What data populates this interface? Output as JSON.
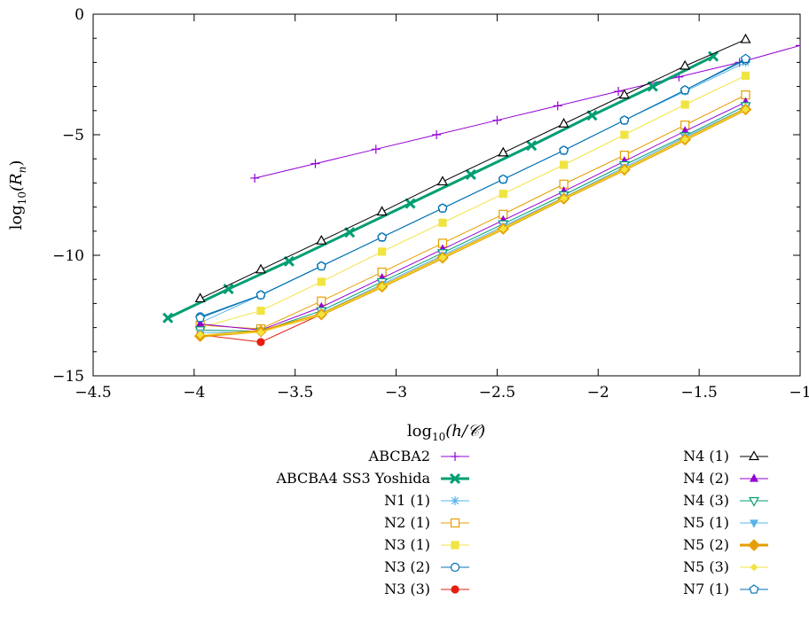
{
  "chart_data": {
    "type": "line",
    "xlabel": {
      "pre": "log",
      "sub": "10",
      "post": "(h/𝒞)"
    },
    "ylabel": {
      "pre": "log",
      "sub": "10",
      "post": "(R",
      "sub2": "n",
      "post2": ")"
    },
    "xlim": [
      -4.5,
      -1
    ],
    "ylim": [
      -15,
      0
    ],
    "x_ticks": [
      -4.5,
      -4,
      -3.5,
      -3,
      -2.5,
      -2,
      -1.5,
      -1
    ],
    "x_tick_labels": [
      "−4.5",
      "−4",
      "−3.5",
      "−3",
      "−2.5",
      "−2",
      "−1.5",
      "−1"
    ],
    "y_ticks": [
      0,
      -5,
      -10,
      -15
    ],
    "y_tick_labels": [
      "0",
      "−5",
      "−10",
      "−15"
    ],
    "grid": false,
    "legend_position": "bottom",
    "series": [
      {
        "name": "ABCBA2",
        "color": "#9400d3",
        "marker": "plus",
        "width": 1,
        "x": [
          -3.7,
          -3.4,
          -3.1,
          -2.8,
          -2.5,
          -2.2,
          -1.9,
          -1.6,
          -1.3,
          -1.0
        ],
        "y": [
          -6.8,
          -6.2,
          -5.6,
          -5.0,
          -4.4,
          -3.8,
          -3.2,
          -2.6,
          -2.0,
          -1.3
        ]
      },
      {
        "name": "ABCBA4 SS3 Yoshida",
        "color": "#009e73",
        "marker": "x",
        "width": 3,
        "x": [
          -4.13,
          -3.83,
          -3.53,
          -3.23,
          -2.93,
          -2.63,
          -2.33,
          -2.03,
          -1.73,
          -1.43
        ],
        "y": [
          -12.6,
          -11.4,
          -10.25,
          -9.05,
          -7.85,
          -6.65,
          -5.45,
          -4.2,
          -3.0,
          -1.75
        ]
      },
      {
        "name": "N1 (1)",
        "color": "#56b4e9",
        "marker": "star",
        "width": 1,
        "x": [
          -3.97,
          -3.67,
          -3.37,
          -3.07,
          -2.77,
          -2.47,
          -2.17,
          -1.87,
          -1.57,
          -1.27
        ],
        "y": [
          -12.8,
          -11.65,
          -10.45,
          -9.25,
          -8.05,
          -6.85,
          -5.65,
          -4.4,
          -3.2,
          -2.0
        ]
      },
      {
        "name": "N2 (1)",
        "color": "#e69f00",
        "marker": "square-open",
        "width": 1,
        "x": [
          -3.97,
          -3.67,
          -3.37,
          -3.07,
          -2.77,
          -2.47,
          -2.17,
          -1.87,
          -1.57,
          -1.27
        ],
        "y": [
          -12.9,
          -13.05,
          -11.9,
          -10.7,
          -9.5,
          -8.3,
          -7.05,
          -5.85,
          -4.6,
          -3.35
        ]
      },
      {
        "name": "N3 (1)",
        "color": "#f0e442",
        "marker": "square-filled",
        "width": 1,
        "x": [
          -3.97,
          -3.67,
          -3.37,
          -3.07,
          -2.77,
          -2.47,
          -2.17,
          -1.87,
          -1.57,
          -1.27
        ],
        "y": [
          -13.0,
          -12.3,
          -11.1,
          -9.85,
          -8.65,
          -7.45,
          -6.25,
          -5.0,
          -3.75,
          -2.55
        ]
      },
      {
        "name": "N3 (2)",
        "color": "#0072b2",
        "marker": "circle-open",
        "width": 1,
        "x": [
          -3.97,
          -3.67,
          -3.37,
          -3.07,
          -2.77,
          -2.47,
          -2.17,
          -1.87,
          -1.57,
          -1.27
        ],
        "y": [
          -12.55,
          -11.65,
          -10.45,
          -9.25,
          -8.05,
          -6.85,
          -5.65,
          -4.4,
          -3.15,
          -1.9
        ]
      },
      {
        "name": "N3 (3)",
        "color": "#e51e10",
        "marker": "circle-filled",
        "width": 1,
        "x": [
          -3.97,
          -3.67,
          -3.37,
          -3.07,
          -2.77,
          -2.47,
          -2.17,
          -1.87,
          -1.57,
          -1.27
        ],
        "y": [
          -13.3,
          -13.6,
          -12.45,
          -11.3,
          -10.1,
          -8.9,
          -7.65,
          -6.45,
          -5.2,
          -3.95
        ]
      },
      {
        "name": "N4 (1)",
        "color": "#000000",
        "marker": "triangle-open",
        "width": 1,
        "x": [
          -3.97,
          -3.67,
          -3.37,
          -3.07,
          -2.77,
          -2.47,
          -2.17,
          -1.87,
          -1.57,
          -1.27
        ],
        "y": [
          -11.8,
          -10.6,
          -9.4,
          -8.2,
          -6.95,
          -5.75,
          -4.55,
          -3.35,
          -2.15,
          -1.05
        ]
      },
      {
        "name": "N4 (2)",
        "color": "#9400d3",
        "marker": "triangle-filled",
        "width": 1,
        "x": [
          -3.97,
          -3.67,
          -3.37,
          -3.07,
          -2.77,
          -2.47,
          -2.17,
          -1.87,
          -1.57,
          -1.27
        ],
        "y": [
          -12.85,
          -13.1,
          -12.15,
          -10.95,
          -9.75,
          -8.55,
          -7.35,
          -6.1,
          -4.85,
          -3.65
        ]
      },
      {
        "name": "N4 (3)",
        "color": "#009e73",
        "marker": "triangle-down-open",
        "width": 1,
        "x": [
          -3.97,
          -3.67,
          -3.37,
          -3.07,
          -2.77,
          -2.47,
          -2.17,
          -1.87,
          -1.57,
          -1.27
        ],
        "y": [
          -13.1,
          -13.15,
          -12.3,
          -11.1,
          -9.9,
          -8.7,
          -7.5,
          -6.25,
          -5.05,
          -3.8
        ]
      },
      {
        "name": "N5 (1)",
        "color": "#56b4e9",
        "marker": "triangle-down-filled",
        "width": 1,
        "x": [
          -3.97,
          -3.67,
          -3.37,
          -3.07,
          -2.77,
          -2.47,
          -2.17,
          -1.87,
          -1.57,
          -1.27
        ],
        "y": [
          -13.2,
          -13.2,
          -12.4,
          -11.2,
          -10.0,
          -8.8,
          -7.6,
          -6.35,
          -5.1,
          -3.9
        ]
      },
      {
        "name": "N5 (2)",
        "color": "#e69f00",
        "marker": "diamond-filled",
        "width": 3,
        "x": [
          -3.97,
          -3.67,
          -3.37,
          -3.07,
          -2.77,
          -2.47,
          -2.17,
          -1.87,
          -1.57,
          -1.27
        ],
        "y": [
          -13.35,
          -13.15,
          -12.45,
          -11.3,
          -10.1,
          -8.9,
          -7.65,
          -6.45,
          -5.2,
          -3.95
        ]
      },
      {
        "name": "N5 (3)",
        "color": "#f0e442",
        "marker": "diamond-small",
        "width": 1,
        "x": [
          -3.97,
          -3.67,
          -3.37,
          -3.07,
          -2.77,
          -2.47,
          -2.17,
          -1.87,
          -1.57,
          -1.27
        ],
        "y": [
          -13.3,
          -13.2,
          -12.45,
          -11.3,
          -10.1,
          -8.9,
          -7.65,
          -6.45,
          -5.2,
          -3.95
        ]
      },
      {
        "name": "N7 (1)",
        "color": "#0072b2",
        "marker": "pentagon-open",
        "width": 1,
        "x": [
          -3.97,
          -3.67,
          -3.37,
          -3.07,
          -2.77,
          -2.47,
          -2.17,
          -1.87,
          -1.57,
          -1.27
        ],
        "y": [
          -12.6,
          -11.65,
          -10.45,
          -9.25,
          -8.05,
          -6.85,
          -5.65,
          -4.4,
          -3.15,
          -1.85
        ]
      }
    ]
  }
}
